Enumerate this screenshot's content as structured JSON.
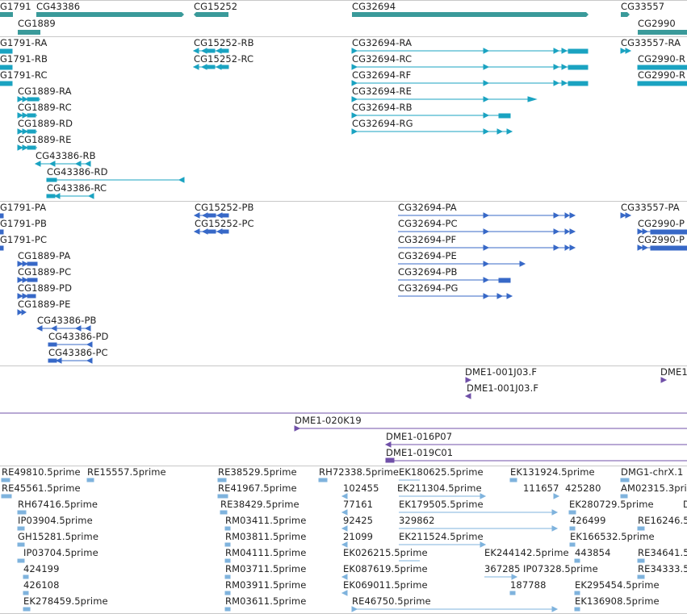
{
  "colors": {
    "gene": "#3a9a9a",
    "transcript": "#1aa3c1",
    "protein": "#3768c7",
    "clone": "#7050a8",
    "est": "#7fb3dd"
  },
  "genes": [
    {
      "label": "G1791"
    },
    {
      "label": "CG43386"
    },
    {
      "label": "CG15252"
    },
    {
      "label": "CG32694"
    },
    {
      "label": "CG33557"
    },
    {
      "label": "CG1889"
    },
    {
      "label": "CG2990"
    }
  ],
  "transcripts": [
    {
      "label": "G1791-RA"
    },
    {
      "label": "G1791-RB"
    },
    {
      "label": "G1791-RC"
    },
    {
      "label": "CG1889-RA"
    },
    {
      "label": "CG1889-RC"
    },
    {
      "label": "CG1889-RD"
    },
    {
      "label": "CG1889-RE"
    },
    {
      "label": "CG43386-RB"
    },
    {
      "label": "CG43386-RD"
    },
    {
      "label": "CG43386-RC"
    },
    {
      "label": "CG15252-RB"
    },
    {
      "label": "CG15252-RC"
    },
    {
      "label": "CG32694-RA"
    },
    {
      "label": "CG32694-RC"
    },
    {
      "label": "CG32694-RF"
    },
    {
      "label": "CG32694-RE"
    },
    {
      "label": "CG32694-RB"
    },
    {
      "label": "CG32694-RG"
    },
    {
      "label": "CG33557-RA"
    },
    {
      "label": "CG2990-R"
    },
    {
      "label": "CG2990-R"
    }
  ],
  "proteins": [
    {
      "label": "G1791-PA"
    },
    {
      "label": "G1791-PB"
    },
    {
      "label": "G1791-PC"
    },
    {
      "label": "CG1889-PA"
    },
    {
      "label": "CG1889-PC"
    },
    {
      "label": "CG1889-PD"
    },
    {
      "label": "CG1889-PE"
    },
    {
      "label": "CG43386-PB"
    },
    {
      "label": "CG43386-PD"
    },
    {
      "label": "CG43386-PC"
    },
    {
      "label": "CG15252-PB"
    },
    {
      "label": "CG15252-PC"
    },
    {
      "label": "CG32694-PA"
    },
    {
      "label": "CG32694-PC"
    },
    {
      "label": "CG32694-PF"
    },
    {
      "label": "CG32694-PE"
    },
    {
      "label": "CG32694-PB"
    },
    {
      "label": "CG32694-PG"
    },
    {
      "label": "CG33557-PA"
    },
    {
      "label": "CG2990-P"
    },
    {
      "label": "CG2990-P"
    }
  ],
  "clones_top": [
    {
      "label": "DME1-001J03.F"
    },
    {
      "label": "DME1-001J03.F"
    },
    {
      "label": "DME1"
    }
  ],
  "clones_mid": [
    {
      "label": "DME1-020K19"
    },
    {
      "label": "DME1-016P07"
    },
    {
      "label": "DME1-019C01"
    }
  ],
  "ests": [
    {
      "label": "RE49810.5prime"
    },
    {
      "label": "RE15557.5prime"
    },
    {
      "label": "RE45561.5prime"
    },
    {
      "label": "RH67416.5prime"
    },
    {
      "label": "IP03904.5prime"
    },
    {
      "label": "GH15281.5prime"
    },
    {
      "label": "IP03704.5prime"
    },
    {
      "label": "424199"
    },
    {
      "label": "426108"
    },
    {
      "label": "EK278459.5prime"
    },
    {
      "label": "RE38529.5prime"
    },
    {
      "label": "RE41967.5prime"
    },
    {
      "label": "RE38429.5prime"
    },
    {
      "label": "RM03411.5prime"
    },
    {
      "label": "RM03811.5prime"
    },
    {
      "label": "RM04111.5prime"
    },
    {
      "label": "RM03711.5prime"
    },
    {
      "label": "RM03911.5prime"
    },
    {
      "label": "RM03611.5prime"
    },
    {
      "label": "RH72338.5prime"
    },
    {
      "label": "102455"
    },
    {
      "label": "77161"
    },
    {
      "label": "92425"
    },
    {
      "label": "21099"
    },
    {
      "label": "EK180625.5prime"
    },
    {
      "label": "EK211304.5prime"
    },
    {
      "label": "EK179505.5prime"
    },
    {
      "label": "329862"
    },
    {
      "label": "EK211524.5prime"
    },
    {
      "label": "EK026215.5prime"
    },
    {
      "label": "EK087619.5prime"
    },
    {
      "label": "EK069011.5prime"
    },
    {
      "label": "RE46750.5prime"
    },
    {
      "label": "EK131924.5prime"
    },
    {
      "label": "111657"
    },
    {
      "label": "425280"
    },
    {
      "label": "EK280729.5prime"
    },
    {
      "label": "426499"
    },
    {
      "label": "EK166532.5prime"
    },
    {
      "label": "EK244142.5prime"
    },
    {
      "label": "443854"
    },
    {
      "label": "367285"
    },
    {
      "label": "IP07328.5prime"
    },
    {
      "label": "187788"
    },
    {
      "label": "EK295454.5prime"
    },
    {
      "label": "EK136908.5prime"
    },
    {
      "label": "DMG1-chrX.1"
    },
    {
      "label": "AM02315.3pri"
    },
    {
      "label": "RE16246.5"
    },
    {
      "label": "RE34641.5"
    },
    {
      "label": "RE34333.5"
    },
    {
      "label": "D"
    }
  ]
}
